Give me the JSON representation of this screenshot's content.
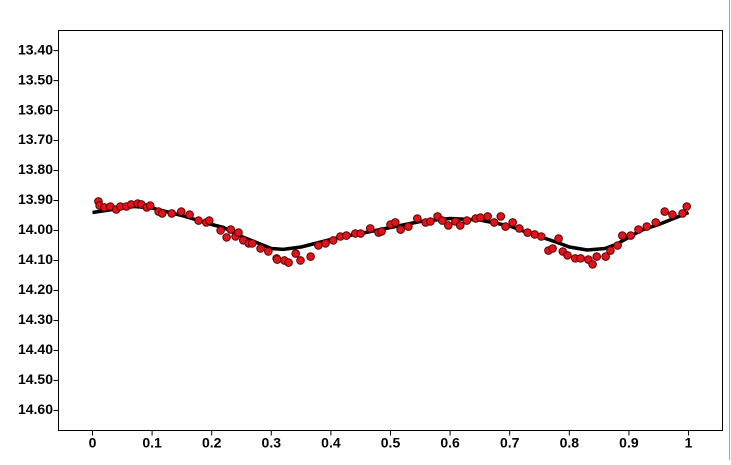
{
  "chart_data": {
    "type": "scatter",
    "xlim": [
      -0.057,
      1.057
    ],
    "ylim": [
      13.333,
      14.667
    ],
    "y_inverted": true,
    "xticks": [
      0,
      0.1,
      0.2,
      0.3,
      0.4,
      0.5,
      0.6,
      0.7,
      0.8,
      0.9,
      1
    ],
    "yticks": [
      {
        "value": 13.4,
        "label": "13.40"
      },
      {
        "value": 13.5,
        "label": "13.50"
      },
      {
        "value": 13.6,
        "label": "13.60"
      },
      {
        "value": 13.7,
        "label": "13.70"
      },
      {
        "value": 13.8,
        "label": "13.80"
      },
      {
        "value": 13.9,
        "label": "13.90"
      },
      {
        "value": 14.0,
        "label": "14.00"
      },
      {
        "value": 14.1,
        "label": "14.10"
      },
      {
        "value": 14.2,
        "label": "14.20"
      },
      {
        "value": 14.3,
        "label": "14.30"
      },
      {
        "value": 14.4,
        "label": "14.40"
      },
      {
        "value": 14.5,
        "label": "14.50"
      },
      {
        "value": 14.6,
        "label": "14.60"
      }
    ],
    "series": [
      {
        "mode": "markers",
        "color": "#e0141c",
        "x": [
          0.01,
          0.012,
          0.02,
          0.03,
          0.04,
          0.047,
          0.057,
          0.065,
          0.076,
          0.082,
          0.091,
          0.097,
          0.111,
          0.117,
          0.133,
          0.149,
          0.163,
          0.178,
          0.191,
          0.196,
          0.215,
          0.225,
          0.232,
          0.24,
          0.245,
          0.253,
          0.262,
          0.268,
          0.282,
          0.295,
          0.309,
          0.31,
          0.322,
          0.329,
          0.341,
          0.349,
          0.366,
          0.379,
          0.391,
          0.404,
          0.416,
          0.426,
          0.441,
          0.45,
          0.466,
          0.48,
          0.485,
          0.5,
          0.508,
          0.517,
          0.53,
          0.545,
          0.559,
          0.567,
          0.579,
          0.587,
          0.597,
          0.609,
          0.617,
          0.628,
          0.643,
          0.651,
          0.663,
          0.674,
          0.685,
          0.693,
          0.705,
          0.716,
          0.73,
          0.742,
          0.753,
          0.765,
          0.772,
          0.782,
          0.789,
          0.797,
          0.81,
          0.819,
          0.832,
          0.839,
          0.846,
          0.861,
          0.869,
          0.881,
          0.889,
          0.903,
          0.916,
          0.93,
          0.945,
          0.96,
          0.973,
          0.99,
          0.997
        ],
        "values": [
          13.903,
          13.917,
          13.923,
          13.92,
          13.93,
          13.92,
          13.92,
          13.913,
          13.91,
          13.913,
          13.923,
          13.917,
          13.937,
          13.943,
          13.943,
          13.937,
          13.947,
          13.967,
          13.973,
          13.967,
          14.0,
          14.023,
          13.997,
          14.02,
          14.007,
          14.033,
          14.043,
          14.043,
          14.06,
          14.07,
          14.093,
          14.097,
          14.1,
          14.107,
          14.077,
          14.1,
          14.087,
          14.05,
          14.043,
          14.033,
          14.02,
          14.017,
          14.01,
          14.01,
          13.993,
          14.007,
          14.003,
          13.98,
          13.973,
          13.997,
          13.987,
          13.96,
          13.973,
          13.97,
          13.953,
          13.967,
          13.983,
          13.97,
          13.983,
          13.967,
          13.96,
          13.957,
          13.953,
          13.973,
          13.953,
          13.987,
          13.973,
          13.993,
          14.007,
          14.013,
          14.02,
          14.067,
          14.06,
          14.027,
          14.07,
          14.083,
          14.093,
          14.093,
          14.097,
          14.113,
          14.087,
          14.087,
          14.067,
          14.05,
          14.017,
          14.017,
          13.997,
          13.987,
          13.973,
          13.937,
          13.947,
          13.943,
          13.92
        ]
      },
      {
        "mode": "line",
        "color": "#000000",
        "x": [
          0,
          0.05,
          0.07,
          0.1,
          0.15,
          0.2,
          0.22,
          0.25,
          0.3,
          0.32,
          0.35,
          0.4,
          0.42,
          0.45,
          0.5,
          0.55,
          0.6,
          0.65,
          0.7,
          0.72,
          0.75,
          0.78,
          0.8,
          0.83,
          0.86,
          0.88,
          0.92,
          0.95,
          1
        ],
        "values": [
          13.94,
          13.925,
          13.92,
          13.925,
          13.95,
          13.98,
          13.99,
          14.02,
          14.06,
          14.063,
          14.055,
          14.03,
          14.02,
          14.01,
          13.99,
          13.97,
          13.96,
          13.965,
          13.985,
          14.0,
          14.02,
          14.04,
          14.055,
          14.065,
          14.06,
          14.045,
          14.0,
          13.98,
          13.94
        ]
      }
    ]
  }
}
